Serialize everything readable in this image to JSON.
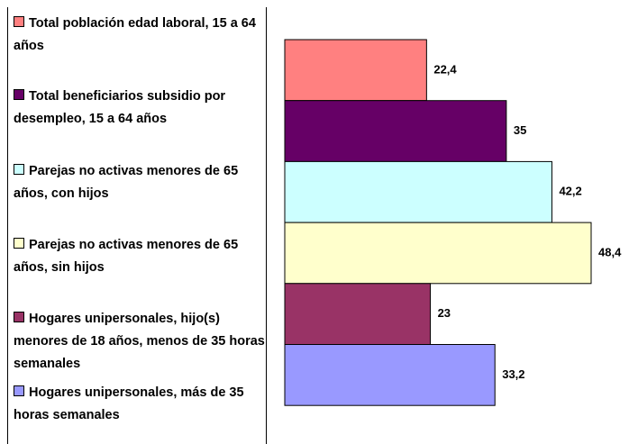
{
  "chart_data": {
    "type": "barh",
    "categories": [
      "Total población edad laboral, 15 a 64 años",
      "Total beneficiarios subsidio por desempleo, 15 a 64 años",
      "Parejas no activas menores de 65 años, con hijos",
      "Parejas no activas menores de 65 años, sin hijos",
      "Hogares unipersonales, hijo(s) menores de 18 años, menos de 35 horas semanales",
      "Hogares unipersonales, más de 35 horas semanales"
    ],
    "values": [
      22.4,
      35,
      42.2,
      48.4,
      23,
      33.2
    ],
    "value_labels": [
      "22,4",
      "35",
      "42,2",
      "48,4",
      "23",
      "33,2"
    ],
    "colors": [
      "#ff8080",
      "#660066",
      "#ccffff",
      "#ffffcc",
      "#993366",
      "#9999ff"
    ],
    "legend": "left"
  }
}
